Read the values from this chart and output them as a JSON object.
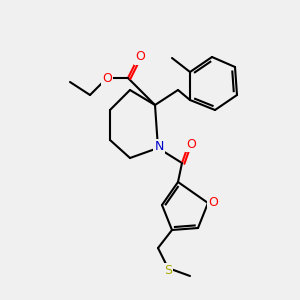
{
  "bg_color": "#f0f0f0",
  "atom_colors": {
    "C": "#000000",
    "O": "#ff0000",
    "N": "#0000cc",
    "S": "#aaaa00"
  },
  "line_width": 1.5,
  "figsize": [
    3.0,
    3.0
  ],
  "dpi": 100
}
